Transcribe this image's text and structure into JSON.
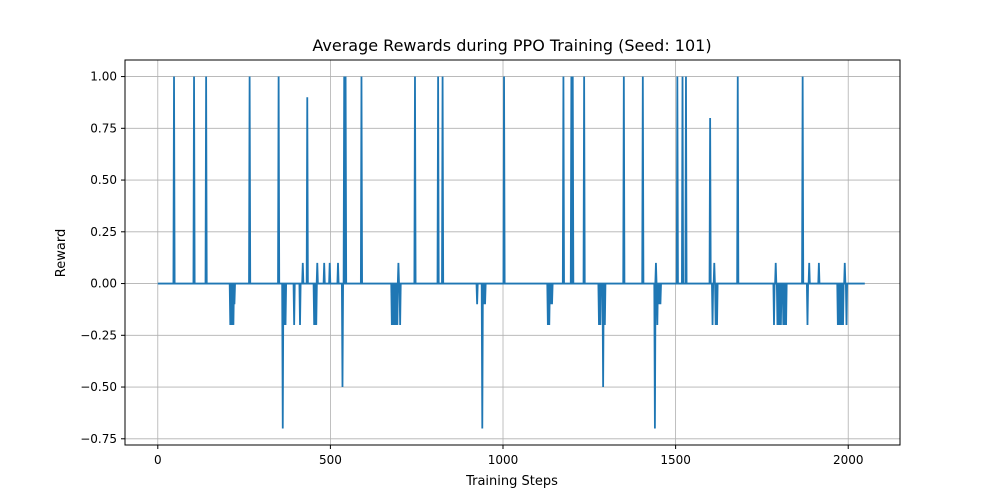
{
  "chart_data": {
    "type": "line",
    "title": "Average Rewards during PPO Training (Seed: 101)",
    "xlabel": "Training Steps",
    "ylabel": "Reward",
    "xlim": [
      -95,
      2150
    ],
    "ylim": [
      -0.78,
      1.08
    ],
    "x_ticks": [
      0,
      500,
      1000,
      1500,
      2000
    ],
    "x_tick_labels": [
      "0",
      "500",
      "1000",
      "1500",
      "2000"
    ],
    "y_ticks": [
      -0.75,
      -0.5,
      -0.25,
      0.0,
      0.25,
      0.5,
      0.75,
      1.0
    ],
    "y_tick_labels": [
      "−0.75",
      "−0.50",
      "−0.25",
      "0.00",
      "0.25",
      "0.50",
      "0.75",
      "1.00"
    ],
    "grid": true,
    "line_color": "#1f77b4",
    "series": [
      {
        "x_range": [
          0,
          2048
        ],
        "baseline": 0,
        "spikes": [
          [
            47,
            1.0
          ],
          [
            105,
            1.0
          ],
          [
            140,
            1.0
          ],
          [
            210,
            -0.2
          ],
          [
            213,
            -0.2
          ],
          [
            216,
            -0.2
          ],
          [
            219,
            -0.2
          ],
          [
            222,
            -0.1
          ],
          [
            266,
            1.0
          ],
          [
            350,
            1.0
          ],
          [
            362,
            -0.7
          ],
          [
            367,
            -0.2
          ],
          [
            370,
            -0.2
          ],
          [
            395,
            -0.2
          ],
          [
            412,
            -0.2
          ],
          [
            420,
            0.1
          ],
          [
            433,
            0.9
          ],
          [
            453,
            -0.2
          ],
          [
            456,
            -0.2
          ],
          [
            459,
            -0.2
          ],
          [
            462,
            0.1
          ],
          [
            482,
            0.1
          ],
          [
            498,
            0.1
          ],
          [
            522,
            0.1
          ],
          [
            535,
            -0.5
          ],
          [
            540,
            1.0
          ],
          [
            544,
            1.0
          ],
          [
            590,
            1.0
          ],
          [
            678,
            -0.2
          ],
          [
            682,
            -0.2
          ],
          [
            686,
            -0.2
          ],
          [
            690,
            -0.2
          ],
          [
            694,
            -0.2
          ],
          [
            697,
            0.1
          ],
          [
            702,
            -0.2
          ],
          [
            745,
            1.0
          ],
          [
            812,
            1.0
          ],
          [
            825,
            1.0
          ],
          [
            925,
            -0.1
          ],
          [
            940,
            -0.7
          ],
          [
            944,
            -0.1
          ],
          [
            948,
            -0.1
          ],
          [
            1003,
            1.0
          ],
          [
            1130,
            -0.2
          ],
          [
            1134,
            -0.2
          ],
          [
            1138,
            -0.1
          ],
          [
            1142,
            -0.1
          ],
          [
            1175,
            1.0
          ],
          [
            1198,
            1.0
          ],
          [
            1202,
            1.0
          ],
          [
            1235,
            1.0
          ],
          [
            1278,
            -0.2
          ],
          [
            1282,
            -0.2
          ],
          [
            1290,
            -0.5
          ],
          [
            1295,
            -0.2
          ],
          [
            1350,
            1.0
          ],
          [
            1405,
            1.0
          ],
          [
            1440,
            -0.7
          ],
          [
            1443,
            0.1
          ],
          [
            1447,
            -0.2
          ],
          [
            1452,
            -0.1
          ],
          [
            1456,
            -0.1
          ],
          [
            1505,
            1.0
          ],
          [
            1520,
            1.0
          ],
          [
            1530,
            1.0
          ],
          [
            1600,
            0.8
          ],
          [
            1607,
            -0.2
          ],
          [
            1612,
            0.1
          ],
          [
            1616,
            -0.2
          ],
          [
            1620,
            -0.2
          ],
          [
            1680,
            1.0
          ],
          [
            1785,
            -0.2
          ],
          [
            1790,
            0.1
          ],
          [
            1795,
            -0.2
          ],
          [
            1800,
            -0.2
          ],
          [
            1805,
            -0.2
          ],
          [
            1812,
            -0.2
          ],
          [
            1816,
            -0.2
          ],
          [
            1820,
            -0.2
          ],
          [
            1868,
            1.0
          ],
          [
            1882,
            -0.2
          ],
          [
            1887,
            0.1
          ],
          [
            1915,
            0.1
          ],
          [
            1970,
            -0.2
          ],
          [
            1975,
            -0.2
          ],
          [
            1980,
            -0.2
          ],
          [
            1985,
            -0.2
          ],
          [
            1990,
            0.1
          ],
          [
            1995,
            -0.2
          ]
        ]
      }
    ]
  }
}
